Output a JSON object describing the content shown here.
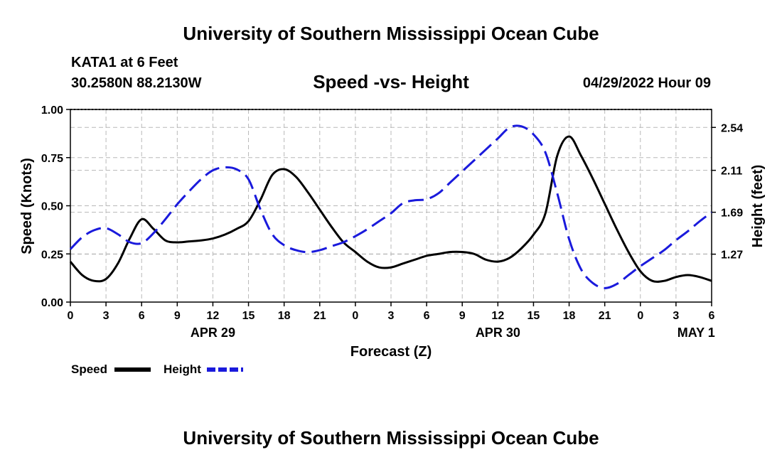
{
  "header": {
    "title_top": "University of Southern Mississippi Ocean Cube",
    "station": "KATA1 at 6 Feet",
    "coords": "30.2580N  88.2130W",
    "datetime": "04/29/2022 Hour 09",
    "title_bottom": "University of Southern Mississippi Ocean Cube"
  },
  "chart_data": {
    "type": "line",
    "title": "Speed -vs- Height",
    "xlabel": "Forecast (Z)",
    "ylabel": "Speed (Knots)",
    "y2label": "Height (feet)",
    "grid": true,
    "legend_position": "bottom-left",
    "x_range": [
      0,
      54
    ],
    "x_tick_labels": [
      "0",
      "3",
      "6",
      "9",
      "12",
      "15",
      "18",
      "21",
      "0",
      "3",
      "6",
      "9",
      "12",
      "15",
      "18",
      "21",
      "0",
      "3",
      "6"
    ],
    "date_labels": [
      {
        "x": 12,
        "label": "APR 29"
      },
      {
        "x": 36,
        "label": "APR 30"
      },
      {
        "x": 52.7,
        "label": "MAY 1"
      }
    ],
    "ylim": [
      0,
      1.0
    ],
    "yticks": [
      0.0,
      0.25,
      0.5,
      0.75,
      1.0
    ],
    "ytick_labels": [
      "0.00",
      "0.25",
      "0.50",
      "0.75",
      "1.00"
    ],
    "y2lim": [
      0.79,
      2.72
    ],
    "y2ticks": [
      1.27,
      1.69,
      2.11,
      2.54
    ],
    "y2tick_labels": [
      "1.27",
      "1.69",
      "2.11",
      "2.54"
    ],
    "series": [
      {
        "name": "Speed",
        "color": "#000000",
        "dash": "solid",
        "axis": "left",
        "x": [
          0,
          1,
          2,
          3,
          4,
          5,
          6,
          7,
          8,
          9,
          10,
          11,
          12,
          13,
          14,
          15,
          16,
          17,
          18,
          19,
          20,
          21,
          22,
          23,
          24,
          25,
          26,
          27,
          28,
          29,
          30,
          31,
          32,
          33,
          34,
          35,
          36,
          37,
          38,
          39,
          40,
          41,
          42,
          43,
          44,
          45,
          46,
          47,
          48,
          49,
          50,
          51,
          52,
          53,
          54
        ],
        "values": [
          0.21,
          0.14,
          0.11,
          0.12,
          0.2,
          0.33,
          0.43,
          0.38,
          0.32,
          0.31,
          0.315,
          0.32,
          0.33,
          0.35,
          0.38,
          0.42,
          0.53,
          0.66,
          0.69,
          0.65,
          0.57,
          0.48,
          0.39,
          0.31,
          0.26,
          0.21,
          0.18,
          0.18,
          0.2,
          0.22,
          0.24,
          0.25,
          0.26,
          0.26,
          0.25,
          0.22,
          0.21,
          0.23,
          0.28,
          0.35,
          0.46,
          0.76,
          0.86,
          0.76,
          0.64,
          0.51,
          0.38,
          0.26,
          0.16,
          0.11,
          0.11,
          0.13,
          0.14,
          0.13,
          0.11
        ]
      },
      {
        "name": "Height",
        "color": "#1a1adc",
        "dash": "dashed",
        "axis": "right",
        "x": [
          0,
          1,
          2,
          3,
          4,
          5,
          6,
          7,
          8,
          9,
          10,
          11,
          12,
          13,
          14,
          15,
          16,
          17,
          18,
          19,
          20,
          21,
          22,
          23,
          24,
          25,
          26,
          27,
          28,
          29,
          30,
          31,
          32,
          33,
          34,
          35,
          36,
          37,
          38,
          39,
          40,
          41,
          42,
          43,
          44,
          45,
          46,
          47,
          48,
          49,
          50,
          51,
          52,
          53,
          54
        ],
        "values": [
          1.32,
          1.44,
          1.51,
          1.53,
          1.47,
          1.39,
          1.38,
          1.48,
          1.62,
          1.77,
          1.9,
          2.02,
          2.11,
          2.14,
          2.12,
          2.02,
          1.72,
          1.47,
          1.36,
          1.31,
          1.29,
          1.31,
          1.35,
          1.39,
          1.45,
          1.52,
          1.6,
          1.68,
          1.78,
          1.81,
          1.82,
          1.88,
          1.99,
          2.1,
          2.21,
          2.32,
          2.43,
          2.54,
          2.55,
          2.47,
          2.29,
          1.88,
          1.42,
          1.12,
          0.98,
          0.93,
          0.97,
          1.06,
          1.15,
          1.23,
          1.31,
          1.41,
          1.5,
          1.6,
          1.69
        ]
      }
    ]
  }
}
